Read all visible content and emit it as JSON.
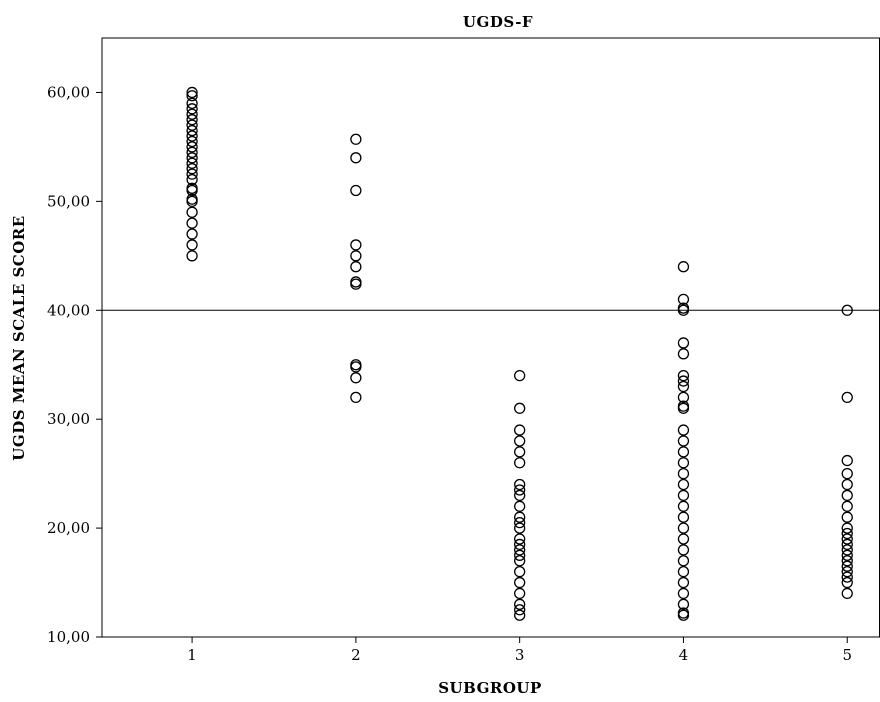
{
  "chart_data": {
    "type": "scatter",
    "title": "UGDS-F",
    "xlabel": "SUBGROUP",
    "ylabel": "UGDS MEAN SCALE SCORE",
    "xlim": [
      0.45,
      5.2
    ],
    "ylim": [
      10,
      65
    ],
    "x_ticks": [
      1,
      2,
      3,
      4,
      5
    ],
    "x_tick_labels": [
      "1",
      "2",
      "3",
      "4",
      "5"
    ],
    "y_ticks": [
      10,
      20,
      30,
      40,
      50,
      60
    ],
    "y_tick_labels": [
      "10,00",
      "20,00",
      "30,00",
      "40,00",
      "50,00",
      "60,00"
    ],
    "reference_line_y": 40,
    "grid": false,
    "legend": "none",
    "series": [
      {
        "values": [
          {
            "x": 1,
            "y": 60
          },
          {
            "x": 1,
            "y": 59.7
          },
          {
            "x": 1,
            "y": 59
          },
          {
            "x": 1,
            "y": 58.5
          },
          {
            "x": 1,
            "y": 58
          },
          {
            "x": 1,
            "y": 57.5
          },
          {
            "x": 1,
            "y": 57
          },
          {
            "x": 1,
            "y": 56.5
          },
          {
            "x": 1,
            "y": 56
          },
          {
            "x": 1,
            "y": 55.5
          },
          {
            "x": 1,
            "y": 55
          },
          {
            "x": 1,
            "y": 54.5
          },
          {
            "x": 1,
            "y": 54
          },
          {
            "x": 1,
            "y": 53.5
          },
          {
            "x": 1,
            "y": 53
          },
          {
            "x": 1,
            "y": 52.5
          },
          {
            "x": 1,
            "y": 52
          },
          {
            "x": 1,
            "y": 51.2
          },
          {
            "x": 1,
            "y": 51
          },
          {
            "x": 1,
            "y": 50.2
          },
          {
            "x": 1,
            "y": 50
          },
          {
            "x": 1,
            "y": 49
          },
          {
            "x": 1,
            "y": 48
          },
          {
            "x": 1,
            "y": 47
          },
          {
            "x": 1,
            "y": 46
          },
          {
            "x": 1,
            "y": 45
          },
          {
            "x": 2,
            "y": 55.7
          },
          {
            "x": 2,
            "y": 54
          },
          {
            "x": 2,
            "y": 51
          },
          {
            "x": 2,
            "y": 46
          },
          {
            "x": 2,
            "y": 45
          },
          {
            "x": 2,
            "y": 44
          },
          {
            "x": 2,
            "y": 42.6
          },
          {
            "x": 2,
            "y": 42.4
          },
          {
            "x": 2,
            "y": 35
          },
          {
            "x": 2,
            "y": 34.8
          },
          {
            "x": 2,
            "y": 33.8
          },
          {
            "x": 2,
            "y": 32
          },
          {
            "x": 3,
            "y": 34
          },
          {
            "x": 3,
            "y": 31
          },
          {
            "x": 3,
            "y": 29
          },
          {
            "x": 3,
            "y": 28
          },
          {
            "x": 3,
            "y": 27
          },
          {
            "x": 3,
            "y": 26
          },
          {
            "x": 3,
            "y": 24
          },
          {
            "x": 3,
            "y": 23.5
          },
          {
            "x": 3,
            "y": 23
          },
          {
            "x": 3,
            "y": 22
          },
          {
            "x": 3,
            "y": 21
          },
          {
            "x": 3,
            "y": 20.5
          },
          {
            "x": 3,
            "y": 20
          },
          {
            "x": 3,
            "y": 19
          },
          {
            "x": 3,
            "y": 18.5
          },
          {
            "x": 3,
            "y": 18
          },
          {
            "x": 3,
            "y": 17.5
          },
          {
            "x": 3,
            "y": 17
          },
          {
            "x": 3,
            "y": 16
          },
          {
            "x": 3,
            "y": 15
          },
          {
            "x": 3,
            "y": 14
          },
          {
            "x": 3,
            "y": 13
          },
          {
            "x": 3,
            "y": 12.5
          },
          {
            "x": 3,
            "y": 12
          },
          {
            "x": 4,
            "y": 44
          },
          {
            "x": 4,
            "y": 41
          },
          {
            "x": 4,
            "y": 40.2
          },
          {
            "x": 4,
            "y": 40
          },
          {
            "x": 4,
            "y": 37
          },
          {
            "x": 4,
            "y": 36
          },
          {
            "x": 4,
            "y": 34
          },
          {
            "x": 4,
            "y": 33.5
          },
          {
            "x": 4,
            "y": 33
          },
          {
            "x": 4,
            "y": 32
          },
          {
            "x": 4,
            "y": 31.2
          },
          {
            "x": 4,
            "y": 31
          },
          {
            "x": 4,
            "y": 29
          },
          {
            "x": 4,
            "y": 28
          },
          {
            "x": 4,
            "y": 27
          },
          {
            "x": 4,
            "y": 26
          },
          {
            "x": 4,
            "y": 25
          },
          {
            "x": 4,
            "y": 24
          },
          {
            "x": 4,
            "y": 23
          },
          {
            "x": 4,
            "y": 22
          },
          {
            "x": 4,
            "y": 21
          },
          {
            "x": 4,
            "y": 20
          },
          {
            "x": 4,
            "y": 19
          },
          {
            "x": 4,
            "y": 18
          },
          {
            "x": 4,
            "y": 17
          },
          {
            "x": 4,
            "y": 16
          },
          {
            "x": 4,
            "y": 15
          },
          {
            "x": 4,
            "y": 14
          },
          {
            "x": 4,
            "y": 13
          },
          {
            "x": 4,
            "y": 12.2
          },
          {
            "x": 4,
            "y": 12
          },
          {
            "x": 5,
            "y": 40
          },
          {
            "x": 5,
            "y": 32
          },
          {
            "x": 5,
            "y": 26.2
          },
          {
            "x": 5,
            "y": 25
          },
          {
            "x": 5,
            "y": 24
          },
          {
            "x": 5,
            "y": 23
          },
          {
            "x": 5,
            "y": 22
          },
          {
            "x": 5,
            "y": 21
          },
          {
            "x": 5,
            "y": 20
          },
          {
            "x": 5,
            "y": 19.5
          },
          {
            "x": 5,
            "y": 19
          },
          {
            "x": 5,
            "y": 18.5
          },
          {
            "x": 5,
            "y": 18
          },
          {
            "x": 5,
            "y": 17.5
          },
          {
            "x": 5,
            "y": 17
          },
          {
            "x": 5,
            "y": 16.5
          },
          {
            "x": 5,
            "y": 16
          },
          {
            "x": 5,
            "y": 15.5
          },
          {
            "x": 5,
            "y": 15
          },
          {
            "x": 5,
            "y": 14
          }
        ]
      }
    ]
  }
}
